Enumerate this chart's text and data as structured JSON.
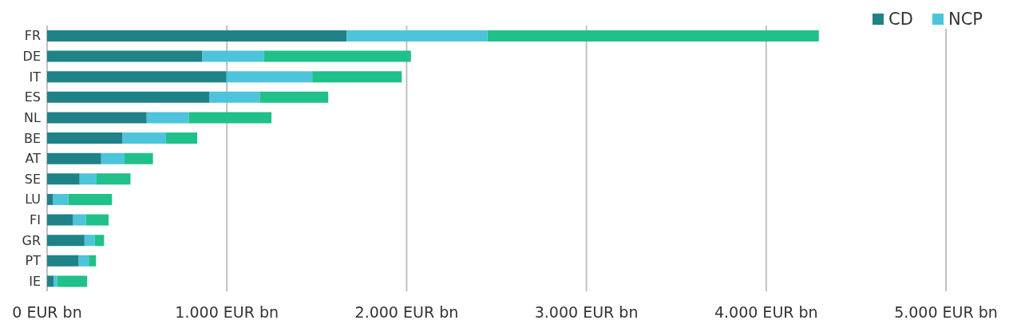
{
  "chart_data": {
    "type": "bar",
    "orientation": "horizontal",
    "stacked": true,
    "categories": [
      "FR",
      "DE",
      "IT",
      "ES",
      "NL",
      "BE",
      "AT",
      "SE",
      "LU",
      "FI",
      "GR",
      "PT",
      "IE"
    ],
    "series": [
      {
        "name": "CD",
        "color": "#1f8287",
        "values": [
          1667,
          864,
          998,
          904,
          554,
          420,
          301,
          181,
          34,
          145,
          208,
          176,
          38
        ]
      },
      {
        "name": "NCP",
        "color": "#4cc4dc",
        "values": [
          783,
          341,
          477,
          279,
          234,
          241,
          130,
          94,
          84,
          71,
          57,
          56,
          18
        ]
      },
      {
        "color": "#20c08a",
        "values": [
          1843,
          819,
          498,
          381,
          460,
          174,
          158,
          189,
          243,
          126,
          52,
          40,
          167
        ]
      }
    ],
    "xlim": [
      0,
      5000
    ],
    "xticks": [
      {
        "value": 0,
        "label": "0 EUR bn"
      },
      {
        "value": 1000,
        "label": "1.000 EUR bn"
      },
      {
        "value": 2000,
        "label": "2.000 EUR bn"
      },
      {
        "value": 3000,
        "label": "3.000 EUR bn"
      },
      {
        "value": 4000,
        "label": "4.000 EUR bn"
      },
      {
        "value": 5000,
        "label": "5.000 EUR bn"
      }
    ],
    "grid": "x",
    "legend": "top right"
  }
}
